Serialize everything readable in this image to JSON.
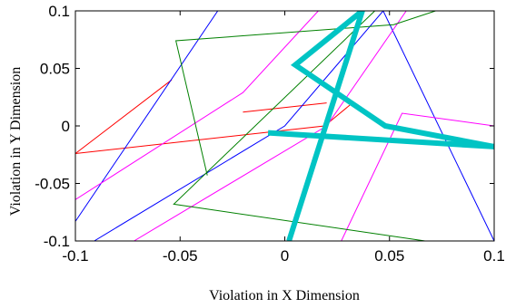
{
  "chart_data": {
    "type": "line",
    "title": "",
    "xlabel": "Violation in X Dimension",
    "ylabel": "Violation in Y Dimension",
    "xlim": [
      -0.1,
      0.1
    ],
    "ylim": [
      -0.1,
      0.1
    ],
    "xticks": [
      -0.1,
      -0.05,
      0,
      0.05,
      0.1
    ],
    "yticks": [
      -0.1,
      -0.05,
      0,
      0.05,
      0.1
    ],
    "xtick_labels": [
      "-0.1",
      "-0.05",
      "0",
      "0.05",
      "0.1"
    ],
    "ytick_labels": [
      "-0.1",
      "-0.05",
      "0",
      "0.05",
      "0.1"
    ],
    "grid": false,
    "series": [
      {
        "color": "#ff0000",
        "line_width": 1,
        "x": [
          -0.054,
          -0.1
        ],
        "y": [
          0.04,
          -0.024
        ]
      },
      {
        "color": "#ff0000",
        "line_width": 1,
        "x": [
          -0.1,
          0.019,
          0.033
        ],
        "y": [
          -0.024,
          0.0,
          0.021
        ]
      },
      {
        "color": "#ff0000",
        "line_width": 1,
        "x": [
          -0.02,
          0.02
        ],
        "y": [
          0.012,
          0.02
        ]
      },
      {
        "color": "#0000ff",
        "line_width": 1,
        "x": [
          -0.1,
          -0.032,
          0.0
        ],
        "y": [
          -0.083,
          0.1,
          0.1
        ]
      },
      {
        "color": "#0000ff",
        "line_width": 1,
        "x": [
          -0.091,
          0.0,
          0.047,
          0.1
        ],
        "y": [
          -0.1,
          0.0,
          0.1,
          -0.1
        ]
      },
      {
        "color": "#ff00ff",
        "line_width": 1,
        "x": [
          -0.1,
          -0.02,
          0.016,
          0.1
        ],
        "y": [
          -0.064,
          0.029,
          0.1,
          0.1
        ]
      },
      {
        "color": "#ff00ff",
        "line_width": 1,
        "x": [
          -0.072,
          0.02,
          0.058
        ],
        "y": [
          -0.1,
          0.0,
          0.1
        ]
      },
      {
        "color": "#ff00ff",
        "line_width": 1,
        "x": [
          0.027,
          0.056,
          0.1
        ],
        "y": [
          -0.1,
          0.011,
          0.0
        ]
      },
      {
        "color": "#008000",
        "line_width": 1,
        "x": [
          -0.037,
          -0.052,
          0.052,
          0.072,
          0.1
        ],
        "y": [
          -0.043,
          0.074,
          0.088,
          0.1,
          0.1
        ]
      },
      {
        "color": "#008000",
        "line_width": 1,
        "x": [
          0.067,
          -0.053,
          0.043,
          0.057,
          0.1
        ],
        "y": [
          -0.1,
          -0.068,
          0.1,
          0.1,
          0.1
        ]
      },
      {
        "color": "#00c4c4",
        "line_width": 6,
        "x": [
          0.002,
          0.037,
          0.005,
          0.048,
          0.1
        ],
        "y": [
          -0.1,
          0.1,
          0.053,
          0.0,
          -0.018
        ]
      },
      {
        "color": "#00c4c4",
        "line_width": 6,
        "x": [
          -0.008,
          0.1
        ],
        "y": [
          -0.006,
          -0.018
        ]
      }
    ]
  }
}
